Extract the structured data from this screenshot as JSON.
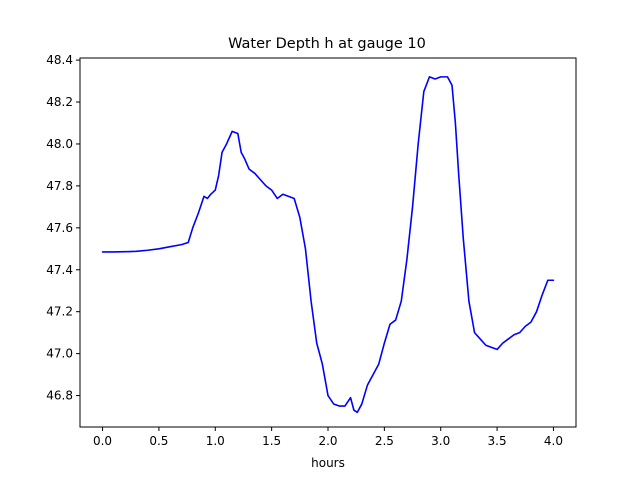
{
  "chart_data": {
    "type": "line",
    "title": "Water Depth h at gauge 10",
    "xlabel": "hours",
    "ylabel": "",
    "xlim": [
      -0.2,
      4.2
    ],
    "ylim": [
      46.65,
      48.41
    ],
    "grid": false,
    "x_ticks": [
      0.0,
      0.5,
      1.0,
      1.5,
      2.0,
      2.5,
      3.0,
      3.5,
      4.0
    ],
    "x_tick_labels": [
      "0.0",
      "0.5",
      "1.0",
      "1.5",
      "2.0",
      "2.5",
      "3.0",
      "3.5",
      "4.0"
    ],
    "y_ticks": [
      46.8,
      47.0,
      47.2,
      47.4,
      47.6,
      47.8,
      48.0,
      48.2,
      48.4
    ],
    "y_tick_labels": [
      "46.8",
      "47.0",
      "47.2",
      "47.4",
      "47.6",
      "47.8",
      "48.0",
      "48.2",
      "48.4"
    ],
    "series": [
      {
        "color": "#0000ff",
        "x": [
          0.0,
          0.1,
          0.2,
          0.3,
          0.4,
          0.5,
          0.6,
          0.7,
          0.76,
          0.8,
          0.85,
          0.9,
          0.93,
          0.96,
          1.0,
          1.03,
          1.06,
          1.1,
          1.15,
          1.2,
          1.23,
          1.26,
          1.3,
          1.35,
          1.4,
          1.45,
          1.5,
          1.55,
          1.6,
          1.65,
          1.7,
          1.75,
          1.8,
          1.85,
          1.9,
          1.95,
          2.0,
          2.05,
          2.1,
          2.15,
          2.2,
          2.23,
          2.26,
          2.3,
          2.35,
          2.4,
          2.45,
          2.5,
          2.55,
          2.6,
          2.65,
          2.7,
          2.75,
          2.8,
          2.85,
          2.9,
          2.95,
          3.0,
          3.03,
          3.06,
          3.1,
          3.13,
          3.16,
          3.2,
          3.25,
          3.3,
          3.35,
          3.4,
          3.45,
          3.5,
          3.55,
          3.6,
          3.65,
          3.7,
          3.75,
          3.8,
          3.85,
          3.9,
          3.95,
          4.0
        ],
        "y": [
          47.485,
          47.485,
          47.486,
          47.488,
          47.493,
          47.5,
          47.51,
          47.52,
          47.53,
          47.6,
          47.67,
          47.75,
          47.74,
          47.76,
          47.78,
          47.85,
          47.96,
          48.0,
          48.06,
          48.05,
          47.96,
          47.93,
          47.88,
          47.86,
          47.83,
          47.8,
          47.78,
          47.74,
          47.76,
          47.75,
          47.74,
          47.65,
          47.5,
          47.25,
          47.05,
          46.95,
          46.8,
          46.76,
          46.75,
          46.75,
          46.79,
          46.73,
          46.72,
          46.76,
          46.85,
          46.9,
          46.95,
          47.05,
          47.14,
          47.16,
          47.25,
          47.45,
          47.7,
          48.0,
          48.25,
          48.32,
          48.31,
          48.32,
          48.32,
          48.32,
          48.28,
          48.1,
          47.85,
          47.55,
          47.25,
          47.1,
          47.07,
          47.04,
          47.03,
          47.02,
          47.05,
          47.07,
          47.09,
          47.1,
          47.13,
          47.15,
          47.2,
          47.28,
          47.35,
          47.35
        ],
        "name": ""
      }
    ]
  }
}
